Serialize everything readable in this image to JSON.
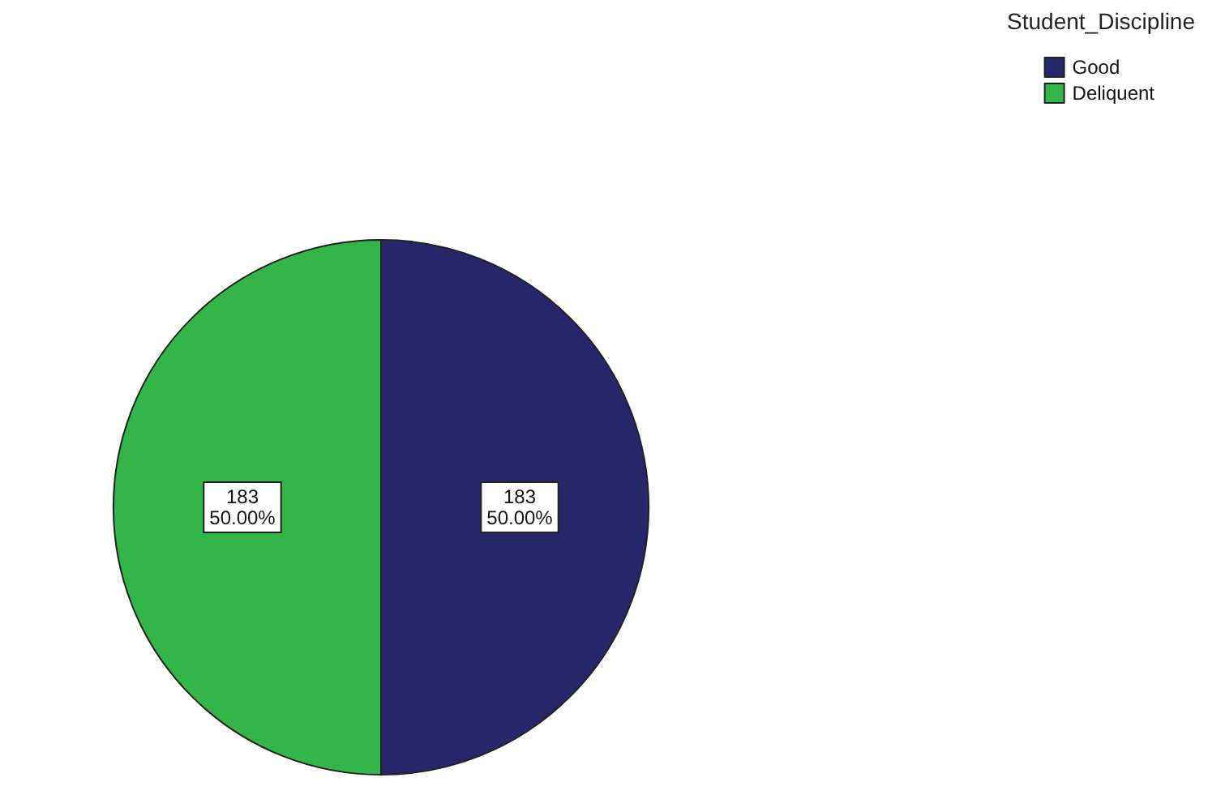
{
  "chart_data": {
    "type": "pie",
    "legend_title": "Student_Discipline",
    "categories": [
      "Good",
      "Deliquent"
    ],
    "values": [
      183,
      183
    ],
    "colors": [
      "#26276b",
      "#33b54a"
    ],
    "value_labels": [
      "183\n50.00%",
      "183\n50.00%"
    ],
    "legend": "top right"
  }
}
